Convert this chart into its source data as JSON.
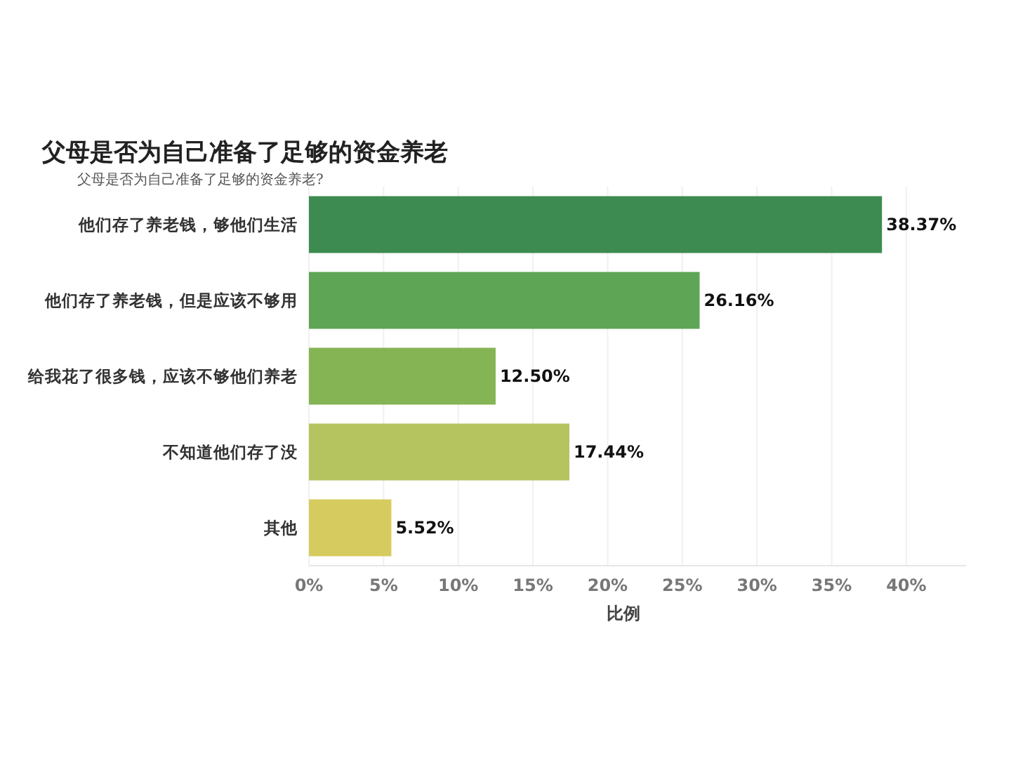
{
  "chart_data": {
    "type": "bar",
    "orientation": "horizontal",
    "title": "父母是否为自己准备了足够的资金养老",
    "subtitle": "父母是否为自己准备了足够的资金养老?",
    "xlabel": "比例",
    "categories": [
      "他们存了养老钱，够他们生活",
      "他们存了养老钱，但是应该不够用",
      "给我花了很多钱，应该不够他们养老",
      "不知道他们存了没",
      "其他"
    ],
    "values": [
      38.37,
      26.16,
      12.5,
      17.44,
      5.52
    ],
    "colors": [
      "#3d8b50",
      "#5ea555",
      "#84b454",
      "#b5c45f",
      "#d6cb5f"
    ],
    "value_labels": [
      "38.37%",
      "26.16%",
      "12.50%",
      "17.44%",
      "5.52%"
    ],
    "xlim": [
      0,
      44
    ],
    "xticks": [
      {
        "value": 0,
        "label": "0%"
      },
      {
        "value": 5,
        "label": "5%"
      },
      {
        "value": 10,
        "label": "10%"
      },
      {
        "value": 15,
        "label": "15%"
      },
      {
        "value": 20,
        "label": "20%"
      },
      {
        "value": 25,
        "label": "25%"
      },
      {
        "value": 30,
        "label": "30%"
      },
      {
        "value": 35,
        "label": "35%"
      },
      {
        "value": 40,
        "label": "40%"
      }
    ],
    "grid": "x"
  }
}
